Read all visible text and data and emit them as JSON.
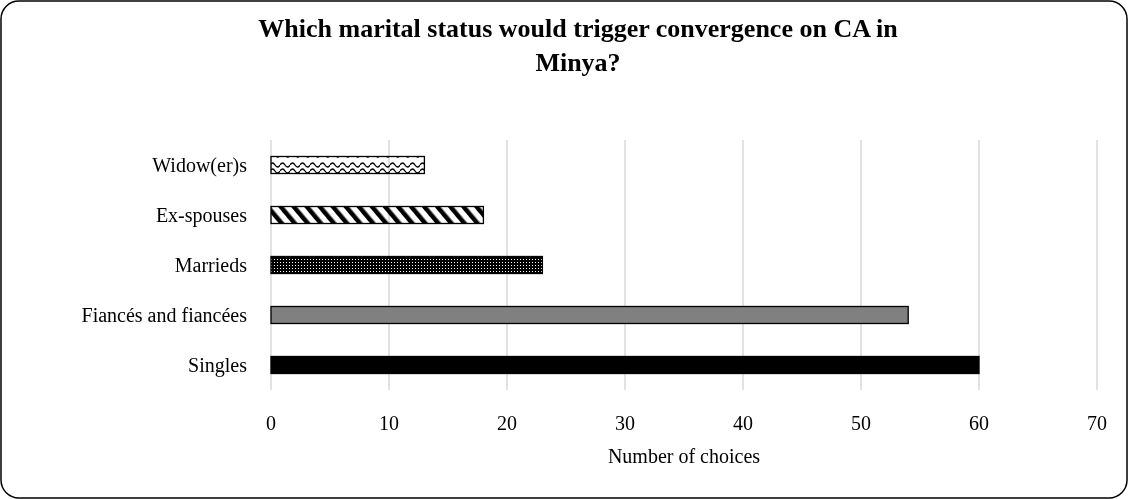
{
  "chart_data": {
    "type": "bar",
    "orientation": "horizontal",
    "title": "Which marital status would trigger convergence on CA in Minya?",
    "xlabel": "Number of choices",
    "categories": [
      "Widow(er)s",
      "Ex-spouses",
      "Marrieds",
      "Fiancés and fiancées",
      "Singles"
    ],
    "values": [
      13,
      18,
      23,
      54,
      60
    ],
    "colors": [
      "#000000",
      "#000000",
      "#000000",
      "#808080",
      "#000000"
    ],
    "xlim": [
      0,
      70
    ],
    "xticks": [
      0,
      10,
      20,
      30,
      40,
      50,
      60,
      70
    ],
    "grid": "x"
  }
}
